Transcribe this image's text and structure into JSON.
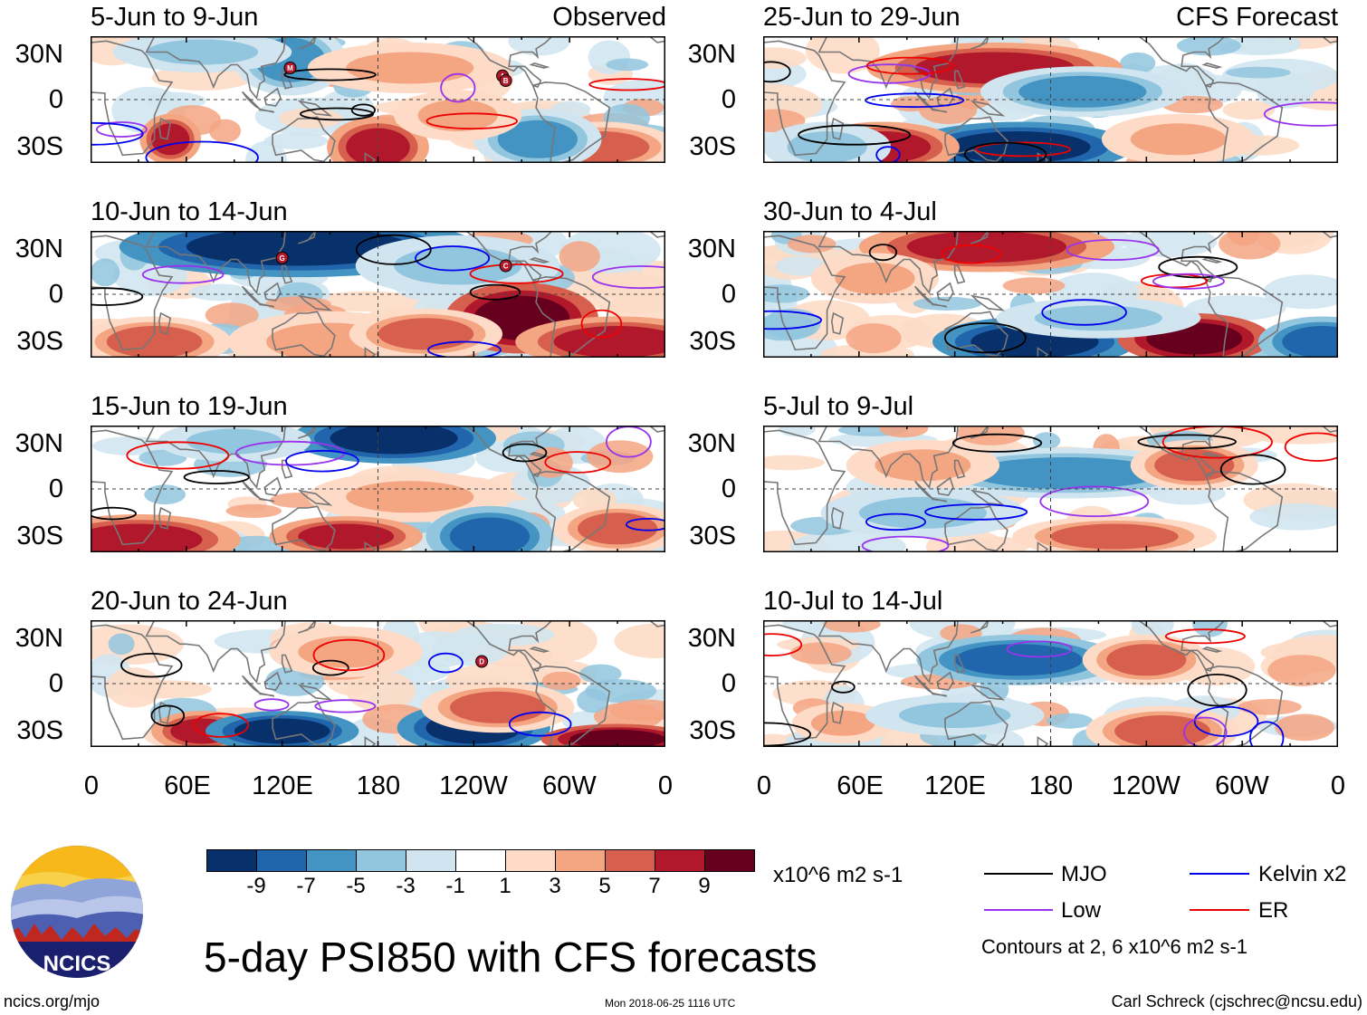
{
  "panels": [
    {
      "id": "p1",
      "title": "5-Jun to 9-Jun",
      "right_label": "Observed"
    },
    {
      "id": "p2",
      "title": "10-Jun to 14-Jun",
      "right_label": ""
    },
    {
      "id": "p3",
      "title": "15-Jun to 19-Jun",
      "right_label": ""
    },
    {
      "id": "p4",
      "title": "20-Jun to 24-Jun",
      "right_label": ""
    },
    {
      "id": "p5",
      "title": "25-Jun to 29-Jun",
      "right_label": "CFS Forecast"
    },
    {
      "id": "p6",
      "title": "30-Jun to 4-Jul",
      "right_label": ""
    },
    {
      "id": "p7",
      "title": "5-Jul to 9-Jul",
      "right_label": ""
    },
    {
      "id": "p8",
      "title": "10-Jul to 14-Jul",
      "right_label": ""
    }
  ],
  "lat_labels": [
    "30N",
    "0",
    "30S"
  ],
  "lon_labels": [
    "0",
    "60E",
    "120E",
    "180",
    "120W",
    "60W",
    "0"
  ],
  "colorbar": {
    "colors": [
      "#08306b",
      "#2166ac",
      "#4393c3",
      "#92c5de",
      "#d1e5f0",
      "#ffffff",
      "#fddbc7",
      "#f4a582",
      "#d6604d",
      "#b2182b",
      "#67001f"
    ],
    "labels": [
      "-9",
      "-7",
      "-5",
      "-3",
      "-1",
      "1",
      "3",
      "5",
      "7",
      "9"
    ],
    "units": "x10^6 m2 s-1"
  },
  "legend": {
    "items": [
      {
        "name": "MJO",
        "color": "#000000"
      },
      {
        "name": "Kelvin x2",
        "color": "#0000ee"
      },
      {
        "name": "Low",
        "color": "#9933ee"
      },
      {
        "name": "ER",
        "color": "#ee0000"
      }
    ],
    "note": "Contours at 2, 6 x10^6 m2 s-1"
  },
  "main_title": "5-day PSI850 with CFS forecasts",
  "logo_text": "NCICS",
  "footer": {
    "url": "ncics.org/mjo",
    "timestamp": "Mon 2018-06-25 1116 UTC",
    "credit": "Carl Schreck (cjschrec@ncsu.edu)"
  },
  "storm_markers": [
    {
      "panel": "p1",
      "letter": "M"
    },
    {
      "panel": "p1",
      "letter": "A"
    },
    {
      "panel": "p1",
      "letter": "B"
    },
    {
      "panel": "p2",
      "letter": "G"
    },
    {
      "panel": "p2",
      "letter": "C"
    },
    {
      "panel": "p4",
      "letter": "D"
    }
  ]
}
